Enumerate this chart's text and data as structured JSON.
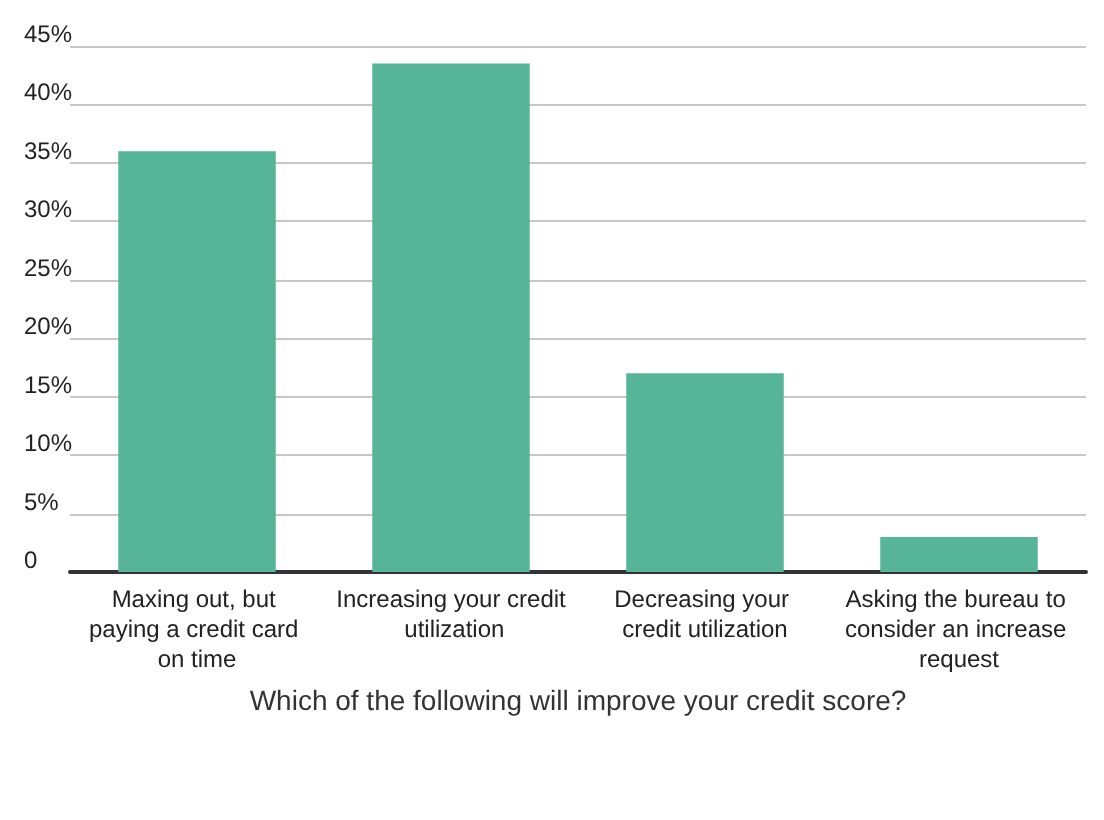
{
  "chart_data": {
    "type": "bar",
    "xlabel": "Which of the following will improve your credit score?",
    "categories": [
      "Maxing out, but paying a credit card on time",
      "Increasing your credit utilization",
      "Decreasing your credit utilization",
      "Asking the bureau to consider an increase request"
    ],
    "values": [
      36,
      43.5,
      17,
      3
    ],
    "color": "#56b596",
    "ylim": [
      0,
      45
    ],
    "yticks": [
      0,
      {
        "value": 5,
        "label": "5%"
      },
      {
        "value": 10,
        "label": "10%"
      },
      {
        "value": 15,
        "label": "15%"
      },
      {
        "value": 20,
        "label": "20%"
      },
      {
        "value": 25,
        "label": "25%"
      },
      {
        "value": 30,
        "label": "30%"
      },
      {
        "value": 35,
        "label": "35%"
      },
      {
        "value": 40,
        "label": "40%"
      },
      {
        "value": 45,
        "label": "45%"
      }
    ],
    "grid": "y"
  }
}
